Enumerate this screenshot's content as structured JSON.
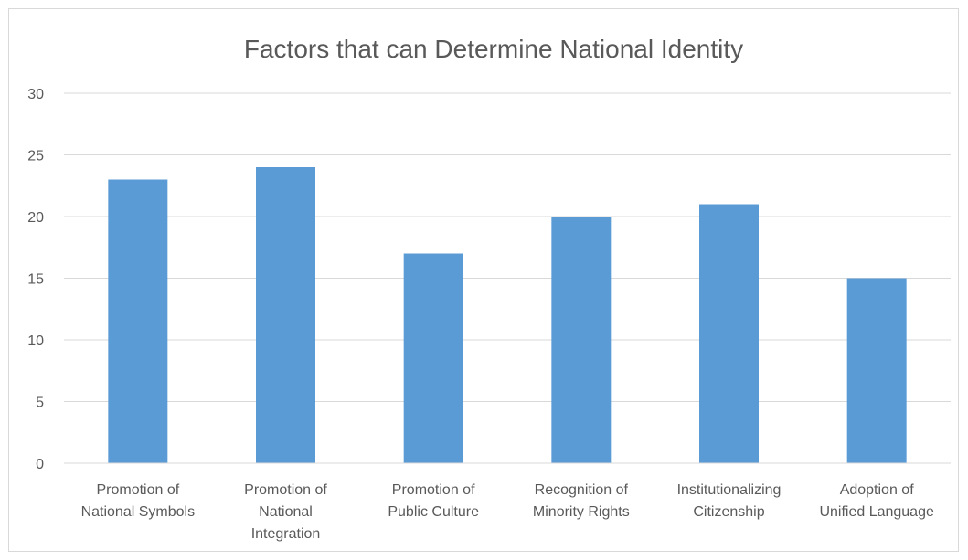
{
  "chart_data": {
    "type": "bar",
    "title": "Factors that can Determine National Identity",
    "xlabel": "",
    "ylabel": "",
    "categories": [
      [
        "Promotion of",
        "National Symbols"
      ],
      [
        "Promotion of",
        "National",
        "Integration"
      ],
      [
        "Promotion of",
        "Public Culture"
      ],
      [
        "Recognition of",
        "Minority Rights"
      ],
      [
        "Institutionalizing",
        "Citizenship"
      ],
      [
        "Adoption of",
        "Unified Language"
      ]
    ],
    "values": [
      23,
      24,
      17,
      20,
      21,
      15
    ],
    "ylim": [
      0,
      30
    ],
    "yticks": [
      "0",
      "5",
      "10",
      "15",
      "20",
      "25",
      "30"
    ],
    "grid": true,
    "legend": "none",
    "bar_color": "#5b9bd5",
    "grid_color": "#d9d9d9",
    "text_color": "#595959"
  }
}
